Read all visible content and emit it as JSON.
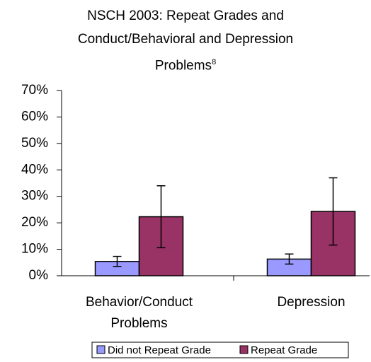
{
  "chart_data": {
    "type": "bar",
    "title": "NSCH 2003: Repeat Grades and Conduct/Behavioral and Depression Problems",
    "title_superscript": "8",
    "categories": [
      "Behavior/Conduct Problems",
      "Depression"
    ],
    "series": [
      {
        "name": "Did not Repeat Grade",
        "color": "#9999ff",
        "values": [
          5.4,
          6.3
        ],
        "errors": [
          1.9,
          1.9
        ]
      },
      {
        "name": "Repeat Grade",
        "color": "#993366",
        "values": [
          22.3,
          24.3
        ],
        "errors": [
          11.7,
          12.7
        ]
      }
    ],
    "ylim": [
      0,
      70
    ],
    "yticks": [
      {
        "value": 0,
        "label": "0%"
      },
      {
        "value": 10,
        "label": "10%"
      },
      {
        "value": 20,
        "label": "20%"
      },
      {
        "value": 30,
        "label": "30%"
      },
      {
        "value": 40,
        "label": "40%"
      },
      {
        "value": 50,
        "label": "50%"
      },
      {
        "value": 60,
        "label": "60%"
      },
      {
        "value": 70,
        "label": "70%"
      }
    ],
    "legend": "bottom"
  }
}
